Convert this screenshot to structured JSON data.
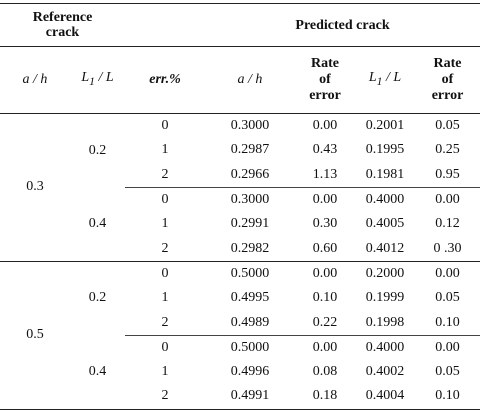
{
  "header": {
    "reference": "Reference crack",
    "predicted": "Predicted crack",
    "columns": [
      {
        "text": "a / h"
      },
      {
        "text": "L",
        "sub": "1",
        "tail": " / L"
      },
      {
        "text": "err.%"
      },
      {
        "text": "a / h"
      },
      {
        "text": "Rate of error"
      },
      {
        "text": "L",
        "sub": "1",
        "tail": " / L"
      },
      {
        "text": "Rate of error"
      }
    ]
  },
  "groups": [
    {
      "a_h": "0.3",
      "subgroups": [
        {
          "L1_L": "0.2",
          "rows": [
            [
              "0",
              "0.3000",
              "0.00",
              "0.2001",
              "0.05"
            ],
            [
              "1",
              "0.2987",
              "0.43",
              "0.1995",
              "0.25"
            ],
            [
              "2",
              "0.2966",
              "1.13",
              "0.1981",
              "0.95"
            ]
          ]
        },
        {
          "L1_L": "0.4",
          "rows": [
            [
              "0",
              "0.3000",
              "0.00",
              "0.4000",
              "0.00"
            ],
            [
              "1",
              "0.2991",
              "0.30",
              "0.4005",
              "0.12"
            ],
            [
              "2",
              "0.2982",
              "0.60",
              "0.4012",
              "0 .30"
            ]
          ]
        }
      ]
    },
    {
      "a_h": "0.5",
      "subgroups": [
        {
          "L1_L": "0.2",
          "rows": [
            [
              "0",
              "0.5000",
              "0.00",
              "0.2000",
              "0.00"
            ],
            [
              "1",
              "0.4995",
              "0.10",
              "0.1999",
              "0.05"
            ],
            [
              "2",
              "0.4989",
              "0.22",
              "0.1998",
              "0.10"
            ]
          ]
        },
        {
          "L1_L": "0.4",
          "rows": [
            [
              "0",
              "0.5000",
              "0.00",
              "0.4000",
              "0.00"
            ],
            [
              "1",
              "0.4996",
              "0.08",
              "0.4002",
              "0.05"
            ],
            [
              "2",
              "0.4991",
              "0.18",
              "0.4004",
              "0.10"
            ]
          ]
        }
      ]
    }
  ]
}
